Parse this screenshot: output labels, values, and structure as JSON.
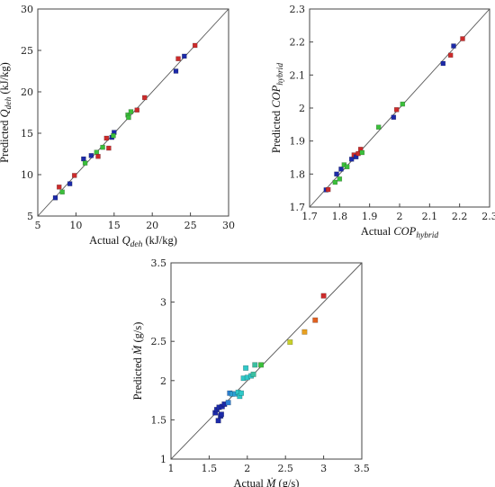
{
  "chart_data": [
    {
      "type": "scatter",
      "xlabel": {
        "pre": "Actual ",
        "sym": "Q",
        "sub": "deh",
        "post": " (kJ/kg)"
      },
      "ylabel": {
        "pre": "Predicted ",
        "sym": "Q",
        "sub": "deh",
        "post": " (kJ/kg)"
      },
      "xlim": [
        5,
        30
      ],
      "ylim": [
        5,
        30
      ],
      "xticks": [
        "5",
        "10",
        "15",
        "20",
        "25",
        "30"
      ],
      "yticks": [
        "5",
        "10",
        "15",
        "20",
        "25",
        "30"
      ],
      "grid": false,
      "diagonal": [
        [
          5,
          5
        ],
        [
          30,
          30
        ]
      ],
      "points": [
        {
          "x": 7.3,
          "y": 7.2,
          "color": "#1c2aa8"
        },
        {
          "x": 7.8,
          "y": 8.5,
          "color": "#cc2b2b"
        },
        {
          "x": 8.2,
          "y": 7.9,
          "color": "#3bbf3b"
        },
        {
          "x": 9.2,
          "y": 8.9,
          "color": "#1c2aa8"
        },
        {
          "x": 9.8,
          "y": 9.9,
          "color": "#cc2b2b"
        },
        {
          "x": 11.0,
          "y": 11.9,
          "color": "#1c2aa8"
        },
        {
          "x": 11.2,
          "y": 11.4,
          "color": "#3bbf3b"
        },
        {
          "x": 12.0,
          "y": 12.3,
          "color": "#1c2aa8"
        },
        {
          "x": 12.7,
          "y": 12.7,
          "color": "#3bbf3b"
        },
        {
          "x": 12.9,
          "y": 12.2,
          "color": "#cc2b2b"
        },
        {
          "x": 13.5,
          "y": 13.3,
          "color": "#3bbf3b"
        },
        {
          "x": 14.0,
          "y": 14.4,
          "color": "#cc2b2b"
        },
        {
          "x": 14.3,
          "y": 13.2,
          "color": "#cc2b2b"
        },
        {
          "x": 14.7,
          "y": 14.5,
          "color": "#1c2aa8"
        },
        {
          "x": 15.0,
          "y": 15.1,
          "color": "#1c2aa8"
        },
        {
          "x": 14.9,
          "y": 14.7,
          "color": "#3bbf3b"
        },
        {
          "x": 16.8,
          "y": 17.2,
          "color": "#3bbf3b"
        },
        {
          "x": 16.9,
          "y": 16.9,
          "color": "#3bbf3b"
        },
        {
          "x": 17.2,
          "y": 17.6,
          "color": "#3bbf3b"
        },
        {
          "x": 18.0,
          "y": 17.8,
          "color": "#cc2b2b"
        },
        {
          "x": 19.0,
          "y": 19.3,
          "color": "#cc2b2b"
        },
        {
          "x": 23.1,
          "y": 22.5,
          "color": "#1c2aa8"
        },
        {
          "x": 23.4,
          "y": 24.0,
          "color": "#cc2b2b"
        },
        {
          "x": 24.2,
          "y": 24.3,
          "color": "#1c2aa8"
        },
        {
          "x": 25.6,
          "y": 25.6,
          "color": "#cc2b2b"
        }
      ]
    },
    {
      "type": "scatter",
      "xlabel": {
        "pre": "Actual ",
        "sym": "COP",
        "sub": "hybrid",
        "post": ""
      },
      "ylabel": {
        "pre": "Predicted ",
        "sym": "COP",
        "sub": "hybrid",
        "post": ""
      },
      "xlim": [
        1.7,
        2.3
      ],
      "ylim": [
        1.7,
        2.3
      ],
      "xticks": [
        "1.7",
        "1.8",
        "1.9",
        "2",
        "2.1",
        "2.2",
        "2.3"
      ],
      "yticks": [
        "1.7",
        "1.8",
        "1.9",
        "2",
        "2.1",
        "2.2",
        "2.3"
      ],
      "grid": false,
      "diagonal": [
        [
          1.7,
          1.7
        ],
        [
          2.3,
          2.3
        ]
      ],
      "points": [
        {
          "x": 1.755,
          "y": 1.752,
          "color": "#1c2aa8"
        },
        {
          "x": 1.762,
          "y": 1.753,
          "color": "#cc2b2b"
        },
        {
          "x": 1.785,
          "y": 1.775,
          "color": "#3bbf3b"
        },
        {
          "x": 1.79,
          "y": 1.8,
          "color": "#1c2aa8"
        },
        {
          "x": 1.8,
          "y": 1.785,
          "color": "#3bbf3b"
        },
        {
          "x": 1.805,
          "y": 1.815,
          "color": "#1c2aa8"
        },
        {
          "x": 1.815,
          "y": 1.828,
          "color": "#3bbf3b"
        },
        {
          "x": 1.825,
          "y": 1.822,
          "color": "#3bbf3b"
        },
        {
          "x": 1.84,
          "y": 1.845,
          "color": "#1c2aa8"
        },
        {
          "x": 1.848,
          "y": 1.858,
          "color": "#cc2b2b"
        },
        {
          "x": 1.855,
          "y": 1.852,
          "color": "#1c2aa8"
        },
        {
          "x": 1.862,
          "y": 1.862,
          "color": "#cc2b2b"
        },
        {
          "x": 1.87,
          "y": 1.875,
          "color": "#cc2b2b"
        },
        {
          "x": 1.875,
          "y": 1.865,
          "color": "#3bbf3b"
        },
        {
          "x": 1.93,
          "y": 1.942,
          "color": "#3bbf3b"
        },
        {
          "x": 1.98,
          "y": 1.972,
          "color": "#1c2aa8"
        },
        {
          "x": 1.99,
          "y": 1.995,
          "color": "#cc2b2b"
        },
        {
          "x": 2.01,
          "y": 2.012,
          "color": "#3bbf3b"
        },
        {
          "x": 2.145,
          "y": 2.135,
          "color": "#1c2aa8"
        },
        {
          "x": 2.17,
          "y": 2.16,
          "color": "#cc2b2b"
        },
        {
          "x": 2.18,
          "y": 2.188,
          "color": "#1c2aa8"
        },
        {
          "x": 2.21,
          "y": 2.21,
          "color": "#cc2b2b"
        }
      ]
    },
    {
      "type": "scatter",
      "xlabel": {
        "pre": "Actual ",
        "sym": "Ṁ",
        "sub": "",
        "post": " (g/s)"
      },
      "ylabel": {
        "pre": "Predicted ",
        "sym": "Ṁ",
        "sub": "",
        "post": " (g/s)"
      },
      "xlim": [
        1,
        3.5
      ],
      "ylim": [
        1,
        3.5
      ],
      "xticks": [
        "1",
        "1.5",
        "2",
        "2.5",
        "3",
        "3.5"
      ],
      "yticks": [
        "1",
        "1.5",
        "2",
        "2.5",
        "3",
        "3.5"
      ],
      "grid": false,
      "diagonal": [
        [
          1,
          1
        ],
        [
          3.5,
          3.5
        ]
      ],
      "points": [
        {
          "x": 1.58,
          "y": 1.59,
          "color": "#1c2aa8"
        },
        {
          "x": 1.6,
          "y": 1.63,
          "color": "#1c2aa8"
        },
        {
          "x": 1.62,
          "y": 1.49,
          "color": "#1c2aa8"
        },
        {
          "x": 1.63,
          "y": 1.66,
          "color": "#1c2aa8"
        },
        {
          "x": 1.65,
          "y": 1.55,
          "color": "#1c2aa8"
        },
        {
          "x": 1.66,
          "y": 1.57,
          "color": "#1c2aa8"
        },
        {
          "x": 1.67,
          "y": 1.67,
          "color": "#1c2aa8"
        },
        {
          "x": 1.7,
          "y": 1.7,
          "color": "#1c2aa8"
        },
        {
          "x": 1.75,
          "y": 1.72,
          "color": "#2d7fd4"
        },
        {
          "x": 1.77,
          "y": 1.84,
          "color": "#2d7fd4"
        },
        {
          "x": 1.8,
          "y": 1.83,
          "color": "#2d9fd4"
        },
        {
          "x": 1.84,
          "y": 1.83,
          "color": "#2d9fd4"
        },
        {
          "x": 1.88,
          "y": 1.85,
          "color": "#2fc8c8"
        },
        {
          "x": 1.9,
          "y": 1.8,
          "color": "#2fc8c8"
        },
        {
          "x": 1.92,
          "y": 1.84,
          "color": "#2fc8c8"
        },
        {
          "x": 1.95,
          "y": 2.03,
          "color": "#2fc8c8"
        },
        {
          "x": 1.98,
          "y": 2.16,
          "color": "#2fc8c8"
        },
        {
          "x": 2.0,
          "y": 2.04,
          "color": "#2fc8c8"
        },
        {
          "x": 2.05,
          "y": 2.06,
          "color": "#2fc8c8"
        },
        {
          "x": 2.08,
          "y": 2.08,
          "color": "#3bbfa0"
        },
        {
          "x": 2.1,
          "y": 2.2,
          "color": "#3bbfa0"
        },
        {
          "x": 2.18,
          "y": 2.2,
          "color": "#3bbf3b"
        },
        {
          "x": 2.56,
          "y": 2.49,
          "color": "#c8d02a"
        },
        {
          "x": 2.75,
          "y": 2.62,
          "color": "#e8a020"
        },
        {
          "x": 2.89,
          "y": 2.77,
          "color": "#e06020"
        },
        {
          "x": 3.0,
          "y": 3.08,
          "color": "#cc2b2b"
        }
      ]
    }
  ]
}
